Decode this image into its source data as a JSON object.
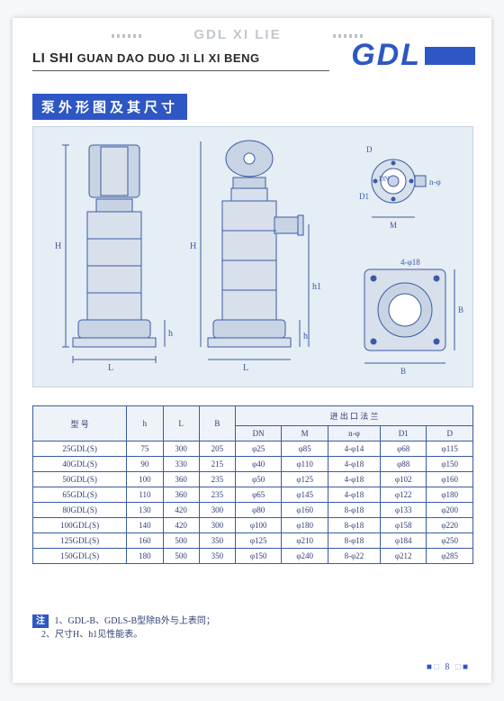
{
  "header": {
    "series": "GDL XI LIE",
    "brand": "GDL",
    "subtitle_bold": "LI SHI",
    "subtitle_rest": "GUAN DAO DUO JI LI XI BENG"
  },
  "section_title": "泵外形图及其尺寸",
  "diagram": {
    "type": "engineering-drawing",
    "background_color": "#e5edf5",
    "line_color": "#3a5ba3",
    "fill_color": "#a8b8d4",
    "labels": {
      "H": "H",
      "L": "L",
      "B": "B",
      "h": "h",
      "h1": "h1",
      "DN": "DN",
      "M": "M",
      "phi4_18": "4-φ18",
      "n_phi": "n-φ"
    }
  },
  "table": {
    "type": "table",
    "border_color": "#3a5ba3",
    "header_bg": "#eef2f9",
    "cell_bg": "#ffffff",
    "text_color": "#2e3f73",
    "font_size": 9,
    "columns_top": [
      "型 号",
      "h",
      "L",
      "B",
      "进 出 口 法 兰"
    ],
    "columns_sub": [
      "DN",
      "M",
      "n-φ",
      "D1",
      "D"
    ],
    "rows": [
      [
        "25GDL(S)",
        "75",
        "300",
        "205",
        "φ25",
        "φ85",
        "4-φ14",
        "φ68",
        "φ115"
      ],
      [
        "40GDL(S)",
        "90",
        "330",
        "215",
        "φ40",
        "φ110",
        "4-φ18",
        "φ88",
        "φ150"
      ],
      [
        "50GDL(S)",
        "100",
        "360",
        "235",
        "φ50",
        "φ125",
        "4-φ18",
        "φ102",
        "φ160"
      ],
      [
        "65GDL(S)",
        "110",
        "360",
        "235",
        "φ65",
        "φ145",
        "4-φ18",
        "φ122",
        "φ180"
      ],
      [
        "80GDL(S)",
        "130",
        "420",
        "300",
        "φ80",
        "φ160",
        "8-φ18",
        "φ133",
        "φ200"
      ],
      [
        "100GDL(S)",
        "140",
        "420",
        "300",
        "φ100",
        "φ180",
        "8-φ18",
        "φ158",
        "φ220"
      ],
      [
        "125GDL(S)",
        "160",
        "500",
        "350",
        "φ125",
        "φ210",
        "8-φ18",
        "φ184",
        "φ250"
      ],
      [
        "150GDL(S)",
        "180",
        "500",
        "350",
        "φ150",
        "φ240",
        "8-φ22",
        "φ212",
        "φ285"
      ]
    ]
  },
  "footnote": {
    "badge": "注",
    "line1": "1、GDL-B、GDLS-B型除B外与上表同；",
    "line2": "2、尺寸H、h1见性能表。"
  },
  "page_number": "8"
}
